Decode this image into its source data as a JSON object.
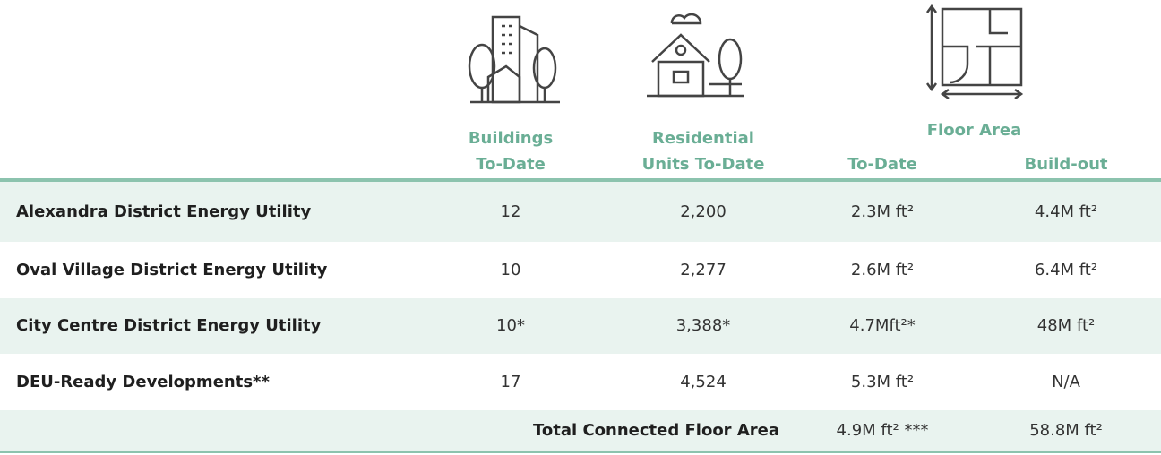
{
  "header": {
    "buildings": [
      "Buildings",
      "To-Date"
    ],
    "residential": [
      "Residential",
      "Units To-Date"
    ],
    "floor_area": {
      "title": "Floor Area",
      "to_date": "To-Date",
      "build_out": "Build-out"
    }
  },
  "table": {
    "rows": [
      [
        "Alexandra District Energy Utility",
        "12",
        "2,200",
        "2.3M ft²",
        "4.4M ft²"
      ],
      [
        "Oval Village District Energy Utility",
        "10",
        "2,277",
        "2.6M ft²",
        "6.4M ft²"
      ],
      [
        "City Centre District Energy Utility",
        "10*",
        "3,388*",
        "4.7Mft²*",
        "48M ft²"
      ],
      [
        "DEU-Ready Developments**",
        "17",
        "4,524",
        "5.3M ft²",
        "N/A"
      ]
    ],
    "total": {
      "label": "Total Connected Floor Area",
      "to_date": "4.9M ft² ***",
      "build_out": "58.8M ft²"
    }
  }
}
